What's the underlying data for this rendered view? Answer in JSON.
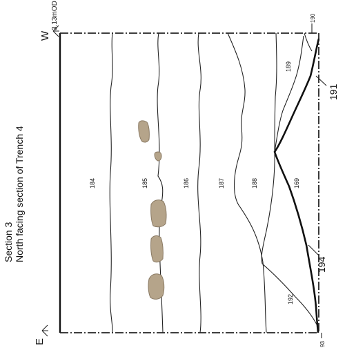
{
  "drawing": {
    "title_line1": "Section 3",
    "title_line2": "North facing section of Trench 4",
    "direction_east": "E",
    "direction_west": "W",
    "datum_label": "3.13mOD",
    "context_labels": {
      "c184": "184",
      "c185": "185",
      "c186": "186",
      "c187": "187",
      "c188": "188",
      "c169": "169",
      "c189": "189",
      "c190": "190",
      "c191": "191",
      "c192": "192",
      "c93": "93",
      "c194": "194"
    },
    "colors": {
      "stone_fill": "#b5a48a",
      "stone_stroke": "#8a7a64",
      "line": "#222222"
    }
  }
}
